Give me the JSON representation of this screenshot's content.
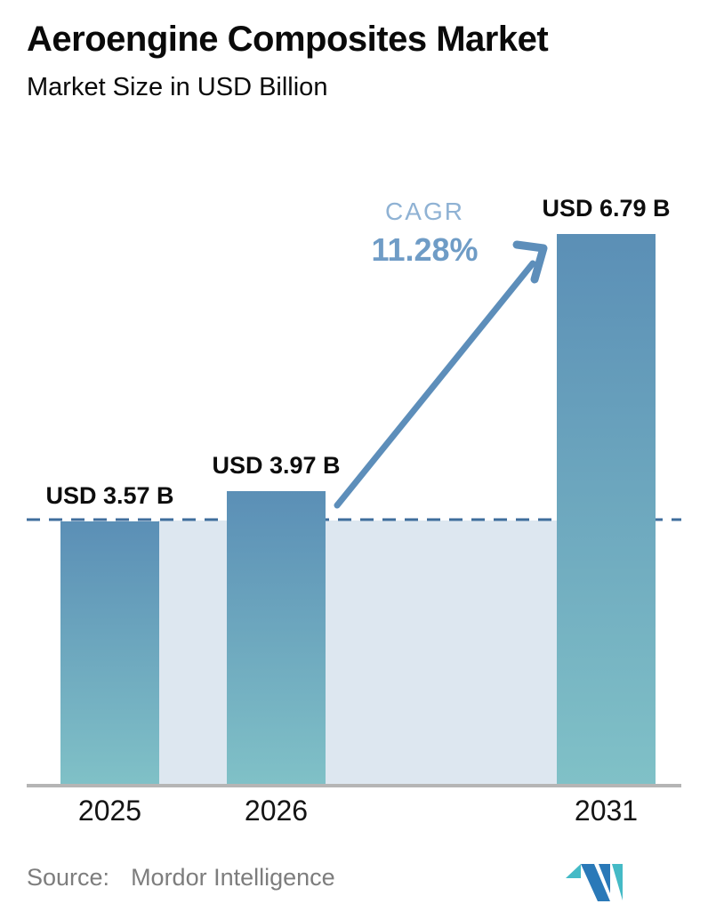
{
  "title": "Aeroengine Composites Market",
  "subtitle": "Market Size in USD Billion",
  "cagr": {
    "label": "CAGR",
    "value": "11.28%"
  },
  "source": {
    "label": "Source:",
    "value": "Mordor Intelligence"
  },
  "logo": {
    "name": "mordor-intelligence-logo"
  },
  "chart_data": {
    "type": "bar",
    "title": "Aeroengine Composites Market",
    "subtitle": "Market Size in USD Billion",
    "unit": "USD Billion",
    "categories": [
      "2025",
      "2026",
      "2031"
    ],
    "values": [
      3.57,
      3.97,
      6.79
    ],
    "bar_labels": [
      "USD 3.57 B",
      "USD 3.97 B",
      "USD 6.79 B"
    ],
    "xlabel": "",
    "ylabel": "Market Size in USD Billion",
    "gridlines": false,
    "legend": "none",
    "reference_line": {
      "style": "dashed",
      "at_value": 3.57
    },
    "annotations": [
      {
        "type": "arrow",
        "from_category": "2026",
        "to_category": "2031",
        "label": "CAGR 11.28%"
      }
    ]
  },
  "colors": {
    "bar_top": "#5b8fb6",
    "bar_bottom": "#80c1c7",
    "band": "#dde7f0",
    "dashed_line": "#3f6e9c",
    "arrow": "#5d8eba",
    "cagr_label": "#8fb2d4",
    "cagr_value": "#6f9cc6",
    "axis_line": "#b5b5b5",
    "source_text": "#7d7d7d",
    "logo_blue": "#2a79b8",
    "logo_teal": "#44bac6"
  }
}
